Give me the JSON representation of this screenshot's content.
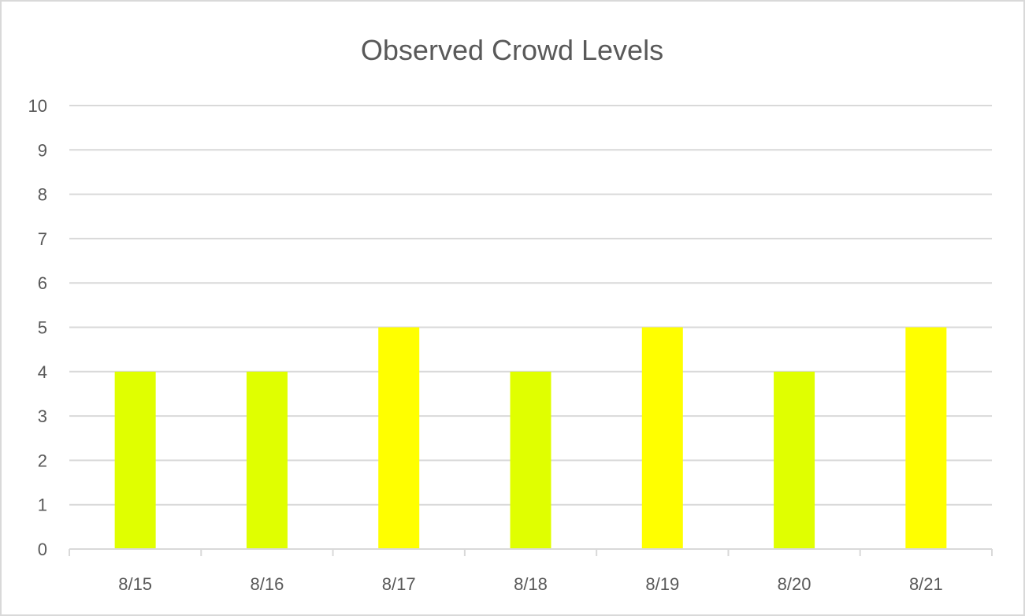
{
  "chart_data": {
    "type": "bar",
    "title": "Observed Crowd Levels",
    "xlabel": "",
    "ylabel": "",
    "categories": [
      "8/15",
      "8/16",
      "8/17",
      "8/18",
      "8/19",
      "8/20",
      "8/21"
    ],
    "values": [
      4,
      4,
      5,
      4,
      5,
      4,
      5
    ],
    "bar_colors": [
      "#E0FF00",
      "#E0FF00",
      "#FFFF00",
      "#E0FF00",
      "#FFFF00",
      "#E0FF00",
      "#FFFF00"
    ],
    "ylim": [
      0,
      10
    ],
    "yticks": [
      "0",
      "1",
      "2",
      "3",
      "4",
      "5",
      "6",
      "7",
      "8",
      "9",
      "10"
    ],
    "grid": true,
    "legend": "none"
  }
}
